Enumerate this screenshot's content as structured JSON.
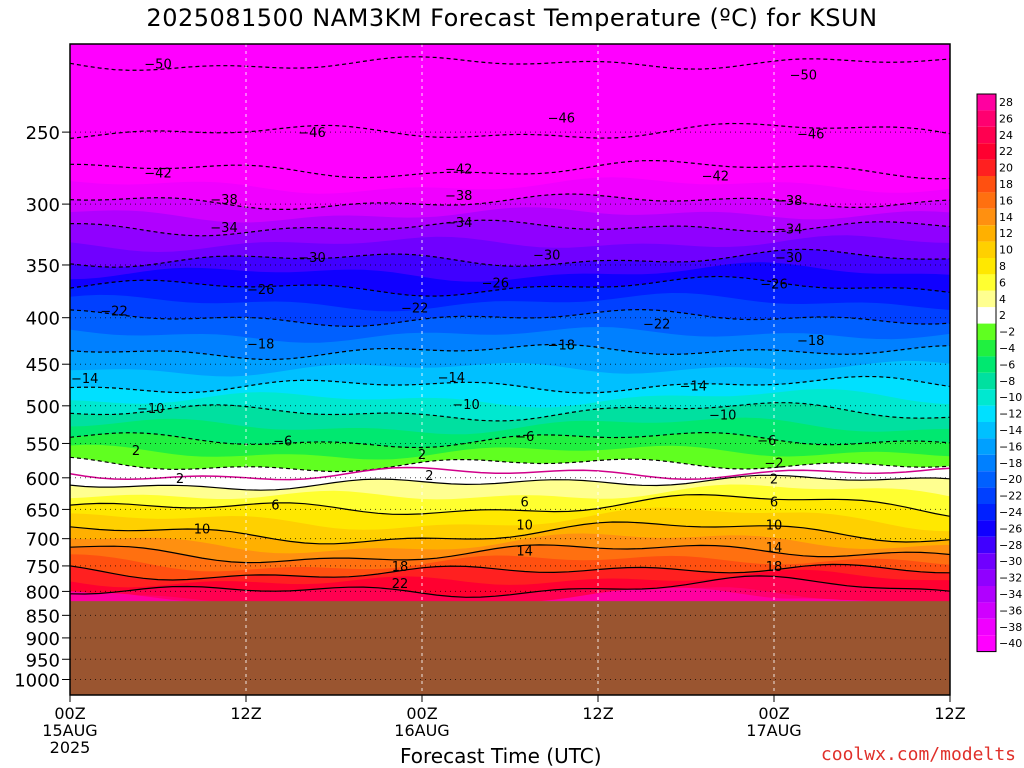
{
  "chart_data": {
    "type": "heatmap",
    "title": "2025081500 NAM3KM Forecast Temperature (ºC) for KSUN",
    "xlabel": "Forecast Time (UTC)",
    "ylabel": "",
    "credit": "coolwx.com/modelts",
    "x_ticks": [
      {
        "hour": 0,
        "lines": [
          "00Z",
          "15AUG",
          "2025"
        ]
      },
      {
        "hour": 12,
        "lines": [
          "12Z"
        ]
      },
      {
        "hour": 24,
        "lines": [
          "00Z",
          "16AUG"
        ]
      },
      {
        "hour": 36,
        "lines": [
          "12Z"
        ]
      },
      {
        "hour": 48,
        "lines": [
          "00Z",
          "17AUG"
        ]
      },
      {
        "hour": 60,
        "lines": [
          "12Z"
        ]
      }
    ],
    "xlim_hours": [
      0,
      60
    ],
    "y_axis_pressure_hpa": {
      "ticks": [
        250,
        300,
        350,
        400,
        450,
        500,
        550,
        600,
        650,
        700,
        750,
        800,
        850,
        900,
        950,
        1000
      ],
      "range": [
        200,
        1040
      ],
      "scale": "log",
      "inverted": true
    },
    "surface_pressure_hpa": 820,
    "colorbar": {
      "labels": [
        28,
        26,
        24,
        22,
        20,
        18,
        16,
        14,
        12,
        10,
        8,
        6,
        4,
        2,
        -2,
        -4,
        -6,
        -8,
        -10,
        -12,
        -14,
        -16,
        -18,
        -20,
        -22,
        -24,
        -26,
        -28,
        -30,
        -32,
        -34,
        -36,
        -38,
        -40
      ],
      "colors": [
        "#ff00a0",
        "#ff0070",
        "#ff0050",
        "#ff0030",
        "#ff2020",
        "#ff5010",
        "#ff7010",
        "#ff9010",
        "#ffb000",
        "#ffd000",
        "#ffe800",
        "#ffff30",
        "#ffff90",
        "#ffffff",
        "#60ff20",
        "#20f040",
        "#00e870",
        "#00e0a0",
        "#00e8d0",
        "#00e0ff",
        "#00c0ff",
        "#00a0ff",
        "#0080ff",
        "#0060ff",
        "#0040ff",
        "#0020ff",
        "#1000ff",
        "#4000ff",
        "#7000ff",
        "#9000ff",
        "#b000ff",
        "#d000ff",
        "#f000ff",
        "#ff00ff"
      ]
    },
    "contour_levels_shown": [
      -50,
      -46,
      -42,
      -38,
      -34,
      -30,
      -26,
      -22,
      -18,
      -14,
      -10,
      -6,
      -2,
      2,
      6,
      10,
      14,
      18,
      22
    ],
    "profile_temperature_at_pressure": [
      {
        "p": 210,
        "t": -50
      },
      {
        "p": 250,
        "t": -46
      },
      {
        "p": 275,
        "t": -42
      },
      {
        "p": 298,
        "t": -38
      },
      {
        "p": 318,
        "t": -34
      },
      {
        "p": 345,
        "t": -30
      },
      {
        "p": 370,
        "t": -26
      },
      {
        "p": 400,
        "t": -22
      },
      {
        "p": 435,
        "t": -18
      },
      {
        "p": 475,
        "t": -14
      },
      {
        "p": 508,
        "t": -10
      },
      {
        "p": 545,
        "t": -6
      },
      {
        "p": 580,
        "t": -2
      },
      {
        "p": 607,
        "t": 2
      },
      {
        "p": 645,
        "t": 6
      },
      {
        "p": 690,
        "t": 10
      },
      {
        "p": 725,
        "t": 14
      },
      {
        "p": 760,
        "t": 18
      },
      {
        "p": 795,
        "t": 22
      },
      {
        "p": 820,
        "t": 24
      }
    ],
    "contour_labels": [
      {
        "t": -50,
        "hour": 6.0,
        "p": 210
      },
      {
        "t": -50,
        "hour": 50.0,
        "p": 216
      },
      {
        "t": -46,
        "hour": 16.5,
        "p": 250
      },
      {
        "t": -46,
        "hour": 33.5,
        "p": 241
      },
      {
        "t": -46,
        "hour": 50.5,
        "p": 251
      },
      {
        "t": -42,
        "hour": 6.0,
        "p": 277
      },
      {
        "t": -42,
        "hour": 26.5,
        "p": 274
      },
      {
        "t": -42,
        "hour": 44.0,
        "p": 279
      },
      {
        "t": -38,
        "hour": 10.5,
        "p": 296
      },
      {
        "t": -38,
        "hour": 26.5,
        "p": 293
      },
      {
        "t": -38,
        "hour": 49.0,
        "p": 297
      },
      {
        "t": -34,
        "hour": 10.5,
        "p": 318
      },
      {
        "t": -34,
        "hour": 26.5,
        "p": 314
      },
      {
        "t": -34,
        "hour": 49.0,
        "p": 319
      },
      {
        "t": -30,
        "hour": 16.5,
        "p": 343
      },
      {
        "t": -30,
        "hour": 32.5,
        "p": 341
      },
      {
        "t": -30,
        "hour": 49.0,
        "p": 343
      },
      {
        "t": -26,
        "hour": 13.0,
        "p": 372
      },
      {
        "t": -26,
        "hour": 29.0,
        "p": 366
      },
      {
        "t": -26,
        "hour": 48.0,
        "p": 367
      },
      {
        "t": -22,
        "hour": 3.0,
        "p": 393
      },
      {
        "t": -22,
        "hour": 23.5,
        "p": 390
      },
      {
        "t": -22,
        "hour": 40.0,
        "p": 406
      },
      {
        "t": -18,
        "hour": 13.0,
        "p": 427
      },
      {
        "t": -18,
        "hour": 33.5,
        "p": 428
      },
      {
        "t": -18,
        "hour": 50.5,
        "p": 423
      },
      {
        "t": -14,
        "hour": 1.0,
        "p": 466
      },
      {
        "t": -14,
        "hour": 26.0,
        "p": 465
      },
      {
        "t": -14,
        "hour": 42.5,
        "p": 475
      },
      {
        "t": -10,
        "hour": 5.5,
        "p": 503
      },
      {
        "t": -10,
        "hour": 27.0,
        "p": 498
      },
      {
        "t": -10,
        "hour": 44.5,
        "p": 511
      },
      {
        "t": -6,
        "hour": 14.5,
        "p": 546
      },
      {
        "t": -6,
        "hour": 31.0,
        "p": 540
      },
      {
        "t": -6,
        "hour": 47.5,
        "p": 545
      },
      {
        "t": -2,
        "hour": 48.0,
        "p": 577
      },
      {
        "t": 2,
        "hour": 4.5,
        "p": 559
      },
      {
        "t": 2,
        "hour": 24.0,
        "p": 565
      },
      {
        "t": 2,
        "hour": 7.5,
        "p": 600
      },
      {
        "t": 2,
        "hour": 24.5,
        "p": 596
      },
      {
        "t": 2,
        "hour": 48.0,
        "p": 601
      },
      {
        "t": 6,
        "hour": 14.0,
        "p": 642
      },
      {
        "t": 6,
        "hour": 31.0,
        "p": 637
      },
      {
        "t": 6,
        "hour": 48.0,
        "p": 637
      },
      {
        "t": 10,
        "hour": 9.0,
        "p": 682
      },
      {
        "t": 10,
        "hour": 31.0,
        "p": 675
      },
      {
        "t": 10,
        "hour": 48.0,
        "p": 675
      },
      {
        "t": 14,
        "hour": 31.0,
        "p": 721
      },
      {
        "t": 14,
        "hour": 48.0,
        "p": 715
      },
      {
        "t": 18,
        "hour": 22.5,
        "p": 750
      },
      {
        "t": 18,
        "hour": 48.0,
        "p": 750
      },
      {
        "t": 22,
        "hour": 22.5,
        "p": 783
      }
    ]
  }
}
